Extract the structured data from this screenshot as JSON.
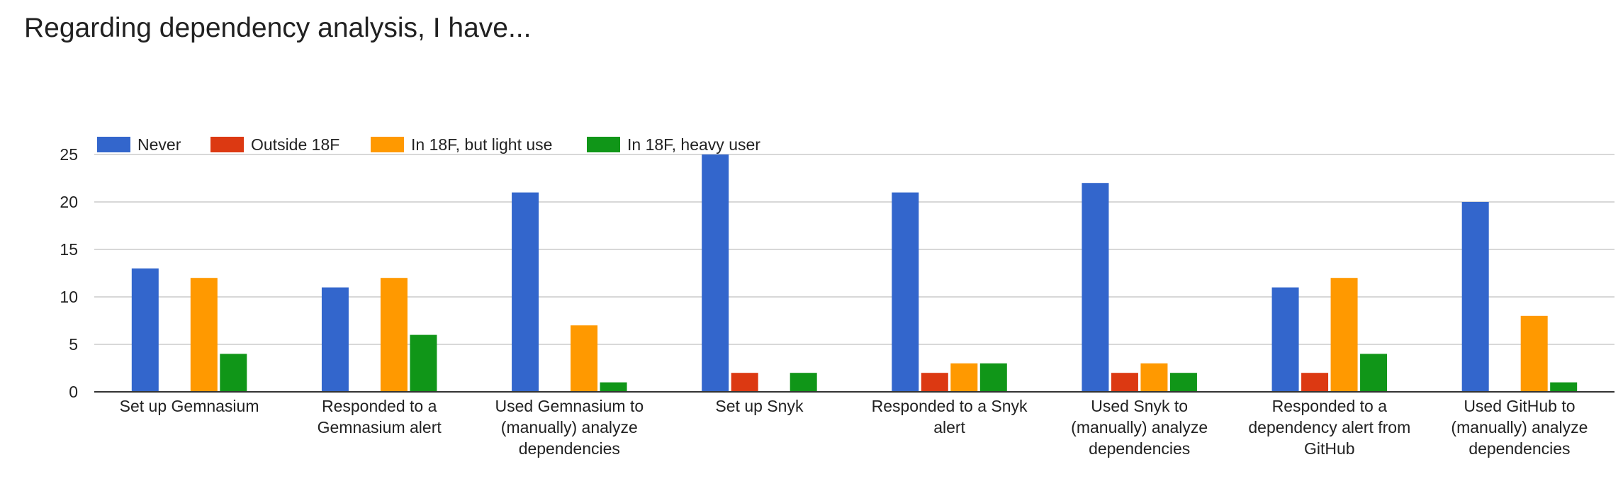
{
  "chart_data": {
    "type": "bar",
    "title": "Regarding dependency analysis, I have...",
    "xlabel": "",
    "ylabel": "",
    "ylim": [
      0,
      25
    ],
    "yticks": [
      0,
      5,
      10,
      15,
      20,
      25
    ],
    "grid": true,
    "legend_position": "top-left",
    "categories": [
      "Set up Gemnasium",
      "Responded to a Gemnasium alert",
      "Used Gemnasium to (manually) analyze dependencies",
      "Set up Snyk",
      "Responded to a Snyk alert",
      "Used Snyk to (manually) analyze dependencies",
      "Responded to a dependency alert from GitHub",
      "Used GitHub to (manually) analyze dependencies"
    ],
    "category_lines": [
      [
        "Set up Gemnasium"
      ],
      [
        "Responded to a",
        "Gemnasium alert"
      ],
      [
        "Used Gemnasium to",
        "(manually) analyze",
        "dependencies"
      ],
      [
        "Set up Snyk"
      ],
      [
        "Responded to a Snyk",
        "alert"
      ],
      [
        "Used Snyk to",
        "(manually) analyze",
        "dependencies"
      ],
      [
        "Responded to a",
        "dependency alert from",
        "GitHub"
      ],
      [
        "Used GitHub to",
        "(manually) analyze",
        "dependencies"
      ]
    ],
    "series": [
      {
        "name": "Never",
        "color": "#3366cc",
        "values": [
          13,
          11,
          21,
          25,
          21,
          22,
          11,
          20
        ]
      },
      {
        "name": "Outside 18F",
        "color": "#dc3912",
        "values": [
          0,
          0,
          0,
          2,
          2,
          2,
          2,
          0
        ]
      },
      {
        "name": "In 18F, but light use",
        "color": "#ff9900",
        "values": [
          12,
          12,
          7,
          0,
          3,
          3,
          12,
          8
        ]
      },
      {
        "name": "In 18F, heavy user",
        "color": "#109618",
        "values": [
          4,
          6,
          1,
          2,
          3,
          2,
          4,
          1
        ]
      }
    ]
  }
}
